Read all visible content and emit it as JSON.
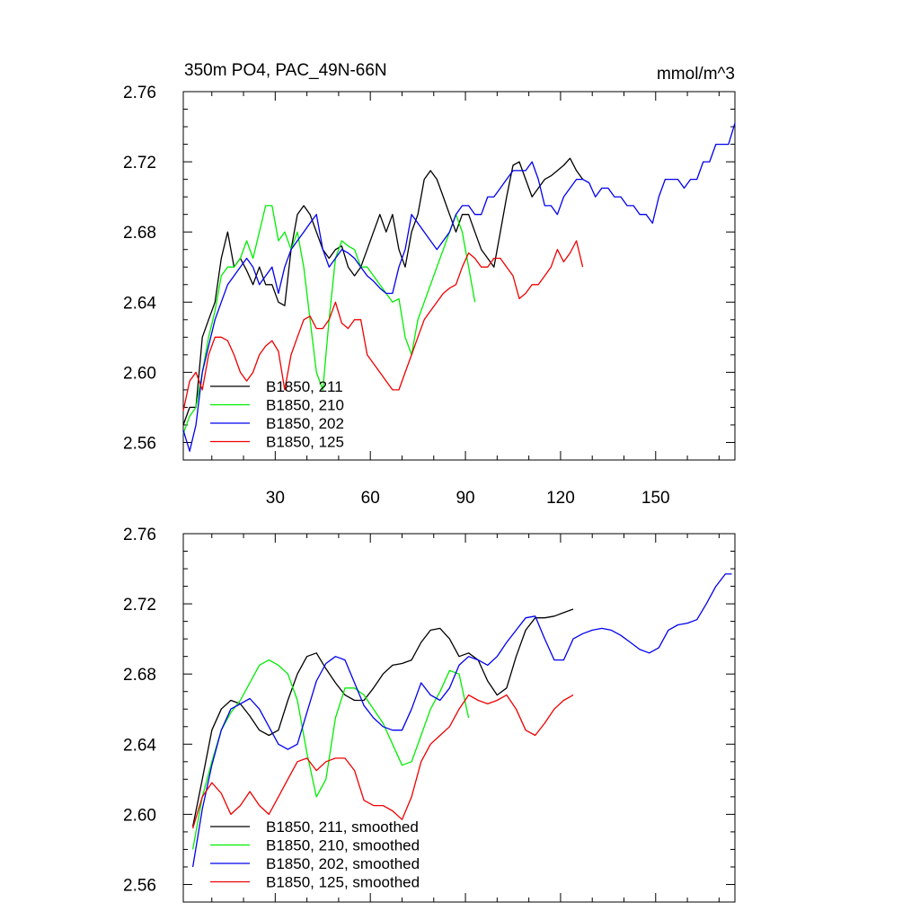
{
  "chart_data": [
    {
      "type": "line",
      "title": "350m PO4, PAC_49N-66N",
      "units": "mmol/m^3",
      "xlim": [
        1,
        175
      ],
      "ylim": [
        2.55,
        2.76
      ],
      "yticks": [
        "2.56",
        "2.60",
        "2.64",
        "2.68",
        "2.72",
        "2.76"
      ],
      "xticks": [
        "30",
        "60",
        "90",
        "120",
        "150"
      ],
      "series": [
        {
          "name": "B1850, 211",
          "color": "#000000",
          "x": [
            1,
            3,
            5,
            7,
            9,
            11,
            13,
            15,
            17,
            19,
            21,
            23,
            25,
            27,
            29,
            31,
            33,
            35,
            37,
            39,
            41,
            43,
            45,
            47,
            49,
            51,
            53,
            55,
            57,
            59,
            61,
            63,
            65,
            67,
            69,
            71,
            73,
            75,
            77,
            79,
            81,
            83,
            85,
            87,
            89,
            91,
            93,
            95,
            97,
            99,
            101,
            103,
            105,
            107,
            109,
            111,
            113,
            115,
            117,
            119,
            121,
            123,
            125,
            127
          ],
          "y": [
            2.57,
            2.58,
            2.58,
            2.62,
            2.63,
            2.64,
            2.665,
            2.68,
            2.66,
            2.665,
            2.658,
            2.65,
            2.66,
            2.65,
            2.65,
            2.64,
            2.638,
            2.67,
            2.69,
            2.695,
            2.69,
            2.68,
            2.67,
            2.665,
            2.67,
            2.672,
            2.66,
            2.655,
            2.66,
            2.67,
            2.68,
            2.69,
            2.68,
            2.69,
            2.67,
            2.66,
            2.68,
            2.69,
            2.71,
            2.715,
            2.71,
            2.7,
            2.69,
            2.68,
            2.69,
            2.69,
            2.68,
            2.67,
            2.665,
            2.66,
            2.68,
            2.7,
            2.718,
            2.72,
            2.71,
            2.7,
            2.705,
            2.71,
            2.712,
            2.715,
            2.718,
            2.722,
            2.715,
            2.71
          ]
        },
        {
          "name": "B1850, 210",
          "color": "#00ee00",
          "x": [
            1,
            3,
            5,
            7,
            9,
            11,
            13,
            15,
            17,
            19,
            21,
            23,
            25,
            27,
            29,
            31,
            33,
            35,
            37,
            39,
            41,
            43,
            45,
            47,
            49,
            51,
            53,
            55,
            57,
            59,
            61,
            63,
            65,
            67,
            69,
            71,
            73,
            75,
            77,
            79,
            81,
            83,
            85,
            87,
            89,
            91,
            93
          ],
          "y": [
            2.565,
            2.575,
            2.58,
            2.6,
            2.62,
            2.635,
            2.655,
            2.66,
            2.66,
            2.665,
            2.675,
            2.665,
            2.68,
            2.695,
            2.695,
            2.675,
            2.68,
            2.67,
            2.68,
            2.66,
            2.63,
            2.6,
            2.59,
            2.63,
            2.665,
            2.675,
            2.672,
            2.67,
            2.66,
            2.66,
            2.655,
            2.65,
            2.645,
            2.64,
            2.642,
            2.62,
            2.61,
            2.63,
            2.64,
            2.65,
            2.66,
            2.67,
            2.68,
            2.69,
            2.68,
            2.66,
            2.64
          ]
        },
        {
          "name": "B1850, 202",
          "color": "#0000ee",
          "x": [
            1,
            3,
            5,
            7,
            9,
            11,
            13,
            15,
            17,
            19,
            21,
            23,
            25,
            27,
            29,
            31,
            33,
            35,
            37,
            39,
            41,
            43,
            45,
            47,
            49,
            51,
            53,
            55,
            57,
            59,
            61,
            63,
            65,
            67,
            69,
            71,
            73,
            75,
            77,
            79,
            81,
            83,
            85,
            87,
            89,
            91,
            93,
            95,
            97,
            99,
            101,
            103,
            105,
            107,
            109,
            111,
            113,
            115,
            117,
            119,
            121,
            123,
            125,
            127,
            129,
            131,
            133,
            135,
            137,
            139,
            141,
            143,
            145,
            147,
            149,
            151,
            153,
            155,
            157,
            159,
            161,
            163,
            165,
            167,
            169,
            171,
            173,
            175
          ],
          "y": [
            2.567,
            2.555,
            2.57,
            2.6,
            2.615,
            2.63,
            2.64,
            2.65,
            2.655,
            2.66,
            2.665,
            2.66,
            2.65,
            2.655,
            2.66,
            2.645,
            2.66,
            2.67,
            2.675,
            2.68,
            2.685,
            2.69,
            2.67,
            2.66,
            2.665,
            2.67,
            2.668,
            2.665,
            2.66,
            2.655,
            2.652,
            2.648,
            2.645,
            2.645,
            2.66,
            2.67,
            2.69,
            2.685,
            2.68,
            2.675,
            2.67,
            2.675,
            2.68,
            2.69,
            2.695,
            2.695,
            2.69,
            2.69,
            2.7,
            2.7,
            2.705,
            2.71,
            2.715,
            2.715,
            2.715,
            2.72,
            2.71,
            2.695,
            2.695,
            2.69,
            2.7,
            2.705,
            2.71,
            2.71,
            2.708,
            2.7,
            2.705,
            2.705,
            2.7,
            2.7,
            2.695,
            2.695,
            2.69,
            2.69,
            2.685,
            2.7,
            2.71,
            2.71,
            2.71,
            2.705,
            2.71,
            2.71,
            2.72,
            2.72,
            2.73,
            2.73,
            2.73,
            2.742
          ]
        },
        {
          "name": "B1850, 125",
          "color": "#ee0000",
          "x": [
            1,
            3,
            5,
            7,
            9,
            11,
            13,
            15,
            17,
            19,
            21,
            23,
            25,
            27,
            29,
            31,
            33,
            35,
            37,
            39,
            41,
            43,
            45,
            47,
            49,
            51,
            53,
            55,
            57,
            59,
            61,
            63,
            65,
            67,
            69,
            71,
            73,
            75,
            77,
            79,
            81,
            83,
            85,
            87,
            89,
            91,
            93,
            95,
            97,
            99,
            101,
            103,
            105,
            107,
            109,
            111,
            113,
            115,
            117,
            119,
            121,
            123,
            125,
            127
          ],
          "y": [
            2.578,
            2.595,
            2.6,
            2.59,
            2.61,
            2.62,
            2.62,
            2.618,
            2.61,
            2.6,
            2.595,
            2.6,
            2.61,
            2.615,
            2.618,
            2.612,
            2.59,
            2.61,
            2.62,
            2.63,
            2.632,
            2.625,
            2.625,
            2.63,
            2.64,
            2.628,
            2.625,
            2.63,
            2.63,
            2.61,
            2.605,
            2.6,
            2.595,
            2.59,
            2.59,
            2.6,
            2.61,
            2.62,
            2.63,
            2.635,
            2.64,
            2.645,
            2.648,
            2.65,
            2.66,
            2.668,
            2.665,
            2.66,
            2.66,
            2.665,
            2.665,
            2.66,
            2.655,
            2.642,
            2.645,
            2.65,
            2.65,
            2.655,
            2.66,
            2.67,
            2.663,
            2.668,
            2.675,
            2.66
          ]
        }
      ]
    },
    {
      "type": "line",
      "title": "",
      "xlim": [
        1,
        175
      ],
      "ylim": [
        2.55,
        2.76
      ],
      "yticks": [
        "2.56",
        "2.60",
        "2.64",
        "2.68",
        "2.72",
        "2.76"
      ],
      "series": [
        {
          "name": "B1850, 211, smoothed",
          "color": "#000000",
          "x": [
            4,
            7,
            10,
            13,
            16,
            19,
            22,
            25,
            28,
            31,
            34,
            37,
            40,
            43,
            46,
            49,
            52,
            55,
            58,
            61,
            64,
            67,
            70,
            73,
            76,
            79,
            82,
            85,
            88,
            91,
            94,
            97,
            100,
            103,
            106,
            109,
            112,
            115,
            118,
            121,
            124
          ],
          "y": [
            2.593,
            2.62,
            2.648,
            2.66,
            2.665,
            2.663,
            2.656,
            2.648,
            2.645,
            2.648,
            2.665,
            2.68,
            2.69,
            2.692,
            2.683,
            2.675,
            2.668,
            2.665,
            2.665,
            2.672,
            2.68,
            2.685,
            2.686,
            2.688,
            2.698,
            2.705,
            2.706,
            2.7,
            2.69,
            2.692,
            2.688,
            2.676,
            2.668,
            2.672,
            2.69,
            2.705,
            2.712,
            2.712,
            2.713,
            2.715,
            2.717
          ]
        },
        {
          "name": "B1850, 210, smoothed",
          "color": "#00ee00",
          "x": [
            4,
            7,
            10,
            13,
            16,
            19,
            22,
            25,
            28,
            31,
            34,
            37,
            40,
            43,
            46,
            49,
            52,
            55,
            58,
            61,
            64,
            67,
            70,
            73,
            76,
            79,
            82,
            85,
            88,
            91
          ],
          "y": [
            2.58,
            2.61,
            2.63,
            2.648,
            2.658,
            2.665,
            2.675,
            2.685,
            2.688,
            2.685,
            2.68,
            2.665,
            2.635,
            2.61,
            2.62,
            2.655,
            2.672,
            2.672,
            2.668,
            2.66,
            2.652,
            2.64,
            2.628,
            2.63,
            2.645,
            2.66,
            2.67,
            2.682,
            2.68,
            2.655
          ]
        },
        {
          "name": "B1850, 202, smoothed",
          "color": "#0000ee",
          "x": [
            4,
            7,
            10,
            13,
            16,
            19,
            22,
            25,
            28,
            31,
            34,
            37,
            40,
            43,
            46,
            49,
            52,
            55,
            58,
            61,
            64,
            67,
            70,
            73,
            76,
            79,
            82,
            85,
            88,
            91,
            94,
            97,
            100,
            103,
            106,
            109,
            112,
            115,
            118,
            121,
            124,
            127,
            130,
            133,
            136,
            139,
            142,
            145,
            148,
            151,
            154,
            157,
            160,
            163,
            166,
            169,
            172,
            174
          ],
          "y": [
            2.57,
            2.603,
            2.628,
            2.648,
            2.66,
            2.663,
            2.666,
            2.66,
            2.65,
            2.64,
            2.637,
            2.64,
            2.658,
            2.676,
            2.686,
            2.69,
            2.688,
            2.675,
            2.662,
            2.655,
            2.65,
            2.648,
            2.648,
            2.66,
            2.675,
            2.668,
            2.665,
            2.672,
            2.685,
            2.69,
            2.688,
            2.685,
            2.69,
            2.698,
            2.705,
            2.712,
            2.713,
            2.7,
            2.688,
            2.688,
            2.7,
            2.703,
            2.705,
            2.706,
            2.705,
            2.702,
            2.698,
            2.694,
            2.692,
            2.695,
            2.705,
            2.708,
            2.709,
            2.711,
            2.72,
            2.73,
            2.737,
            2.737
          ]
        },
        {
          "name": "B1850, 125, smoothed",
          "color": "#ee0000",
          "x": [
            4,
            7,
            10,
            13,
            16,
            19,
            22,
            25,
            28,
            31,
            34,
            37,
            40,
            43,
            46,
            49,
            52,
            55,
            58,
            61,
            64,
            67,
            70,
            73,
            76,
            79,
            82,
            85,
            88,
            91,
            94,
            97,
            100,
            103,
            106,
            109,
            112,
            115,
            118,
            121,
            124
          ],
          "y": [
            2.592,
            2.61,
            2.618,
            2.612,
            2.6,
            2.605,
            2.613,
            2.605,
            2.6,
            2.61,
            2.62,
            2.63,
            2.632,
            2.625,
            2.63,
            2.632,
            2.632,
            2.625,
            2.608,
            2.605,
            2.605,
            2.602,
            2.597,
            2.61,
            2.63,
            2.64,
            2.645,
            2.65,
            2.66,
            2.668,
            2.665,
            2.663,
            2.665,
            2.668,
            2.66,
            2.648,
            2.645,
            2.652,
            2.66,
            2.665,
            2.668
          ]
        }
      ]
    }
  ]
}
